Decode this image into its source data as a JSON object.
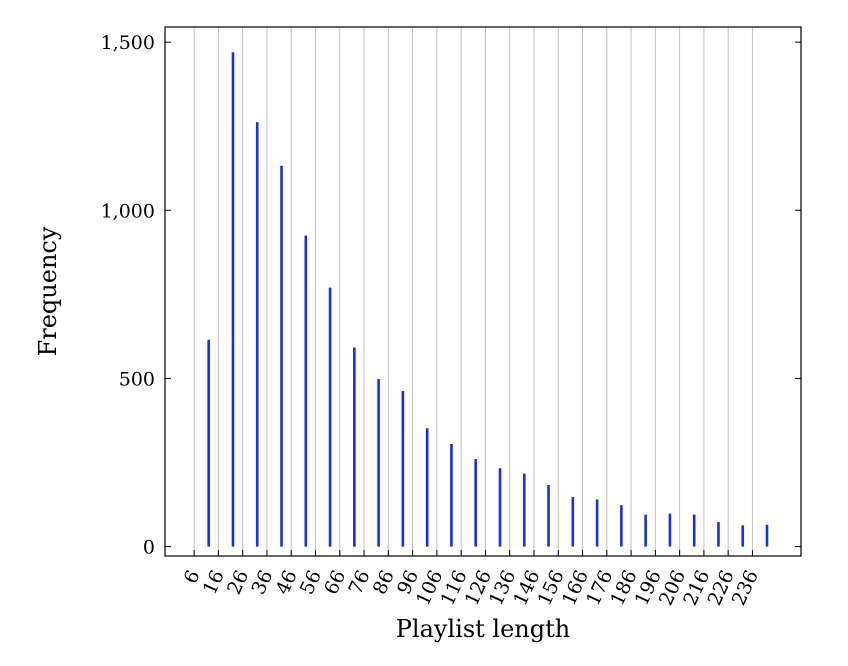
{
  "chart_data": {
    "type": "bar",
    "xlabel": "Playlist length",
    "ylabel": "Frequency",
    "x_ticks": [
      "6",
      "16",
      "26",
      "36",
      "46",
      "56",
      "66",
      "76",
      "86",
      "96",
      "106",
      "116",
      "126",
      "136",
      "146",
      "156",
      "166",
      "176",
      "186",
      "196",
      "206",
      "216",
      "226",
      "236"
    ],
    "y_ticks": [
      "0",
      "500",
      "1,000",
      "1,500"
    ],
    "xlim": [
      -6,
      256
    ],
    "ylim": [
      -28,
      1545
    ],
    "grid": "vertical",
    "series": [
      {
        "color": "#1a2ee6",
        "x": [
          12,
          22,
          32,
          42,
          52,
          62,
          72,
          82,
          92,
          102,
          112,
          122,
          132,
          142,
          152,
          162,
          172,
          182,
          192,
          202,
          212,
          222,
          232,
          242
        ],
        "values": [
          615,
          1470,
          1262,
          1132,
          925,
          770,
          592,
          498,
          463,
          352,
          305,
          260,
          233,
          217,
          183,
          147,
          140,
          123,
          95,
          98,
          95,
          73,
          63,
          65
        ]
      }
    ]
  }
}
